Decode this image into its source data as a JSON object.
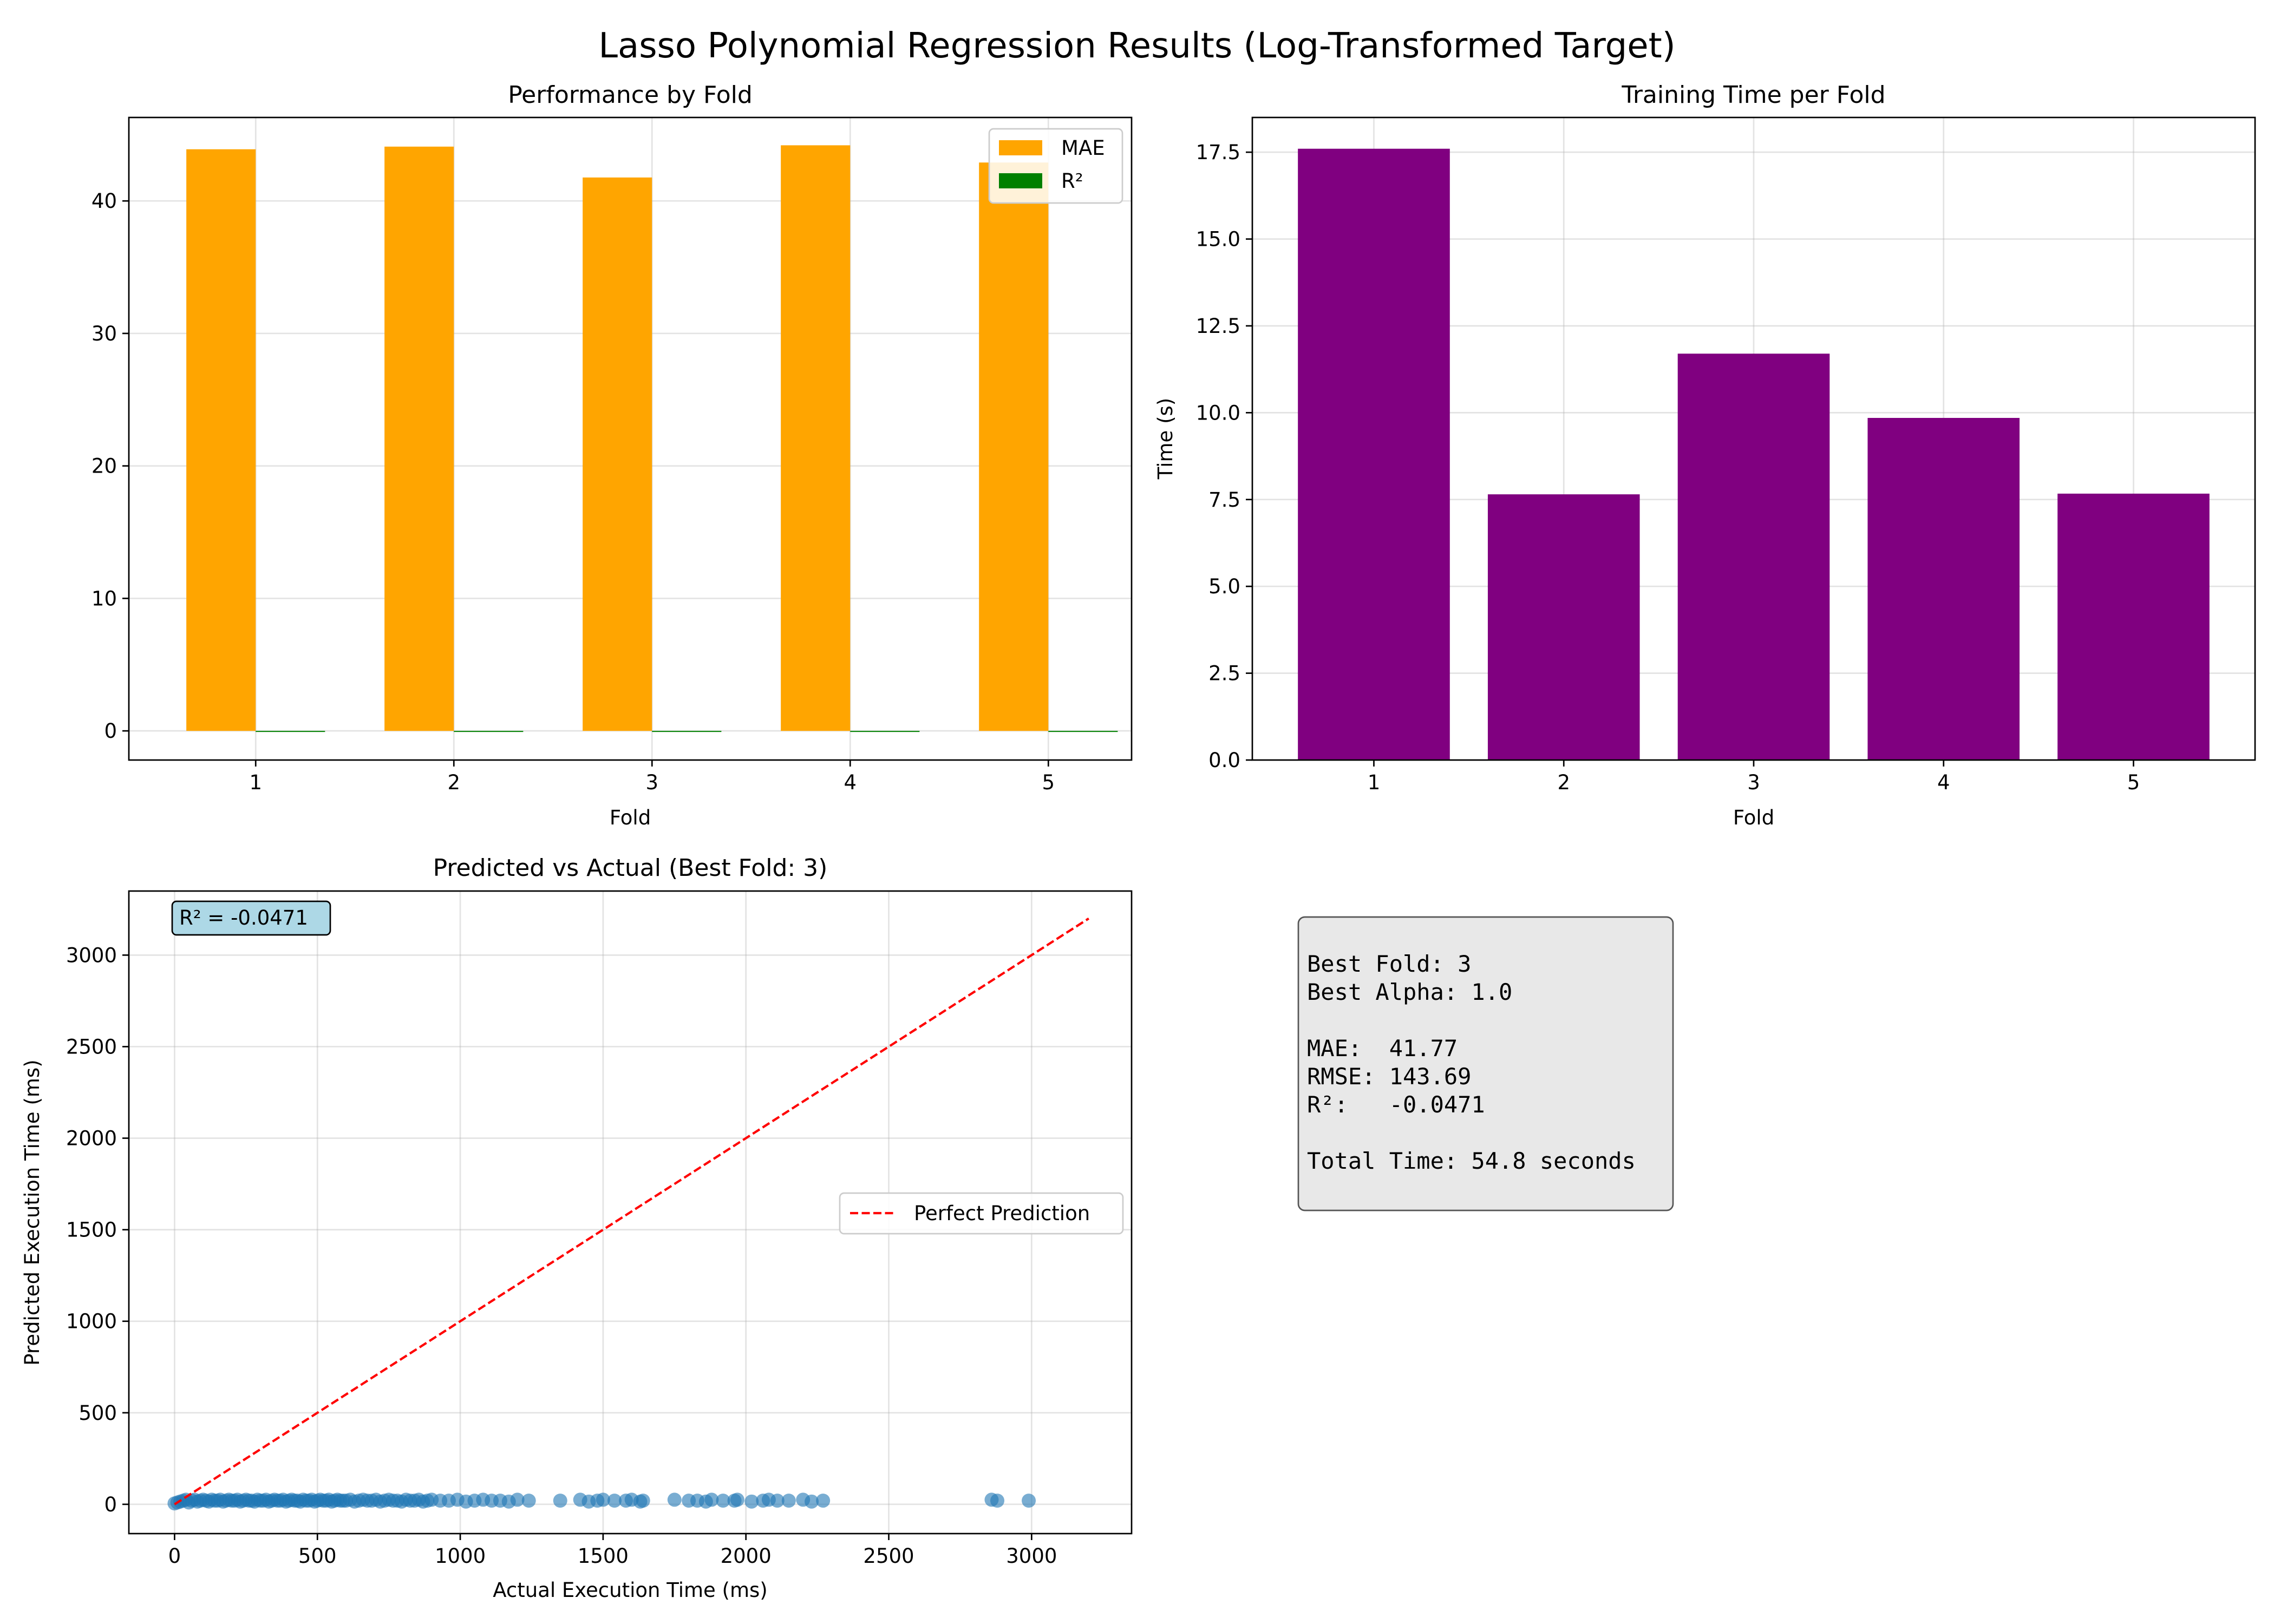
{
  "figure": {
    "suptitle": "Lasso Polynomial Regression Results (Log-Transformed Target)"
  },
  "colors": {
    "mae": "#FFA500",
    "r2": "#008000",
    "time": "#800080",
    "scatter": "#1f77b4",
    "perfect": "#FF0000",
    "annot_bg": "#ADD8E6",
    "summary_bg": "#E8E8E8"
  },
  "chart_data": [
    {
      "id": "performance",
      "type": "bar",
      "title": "Performance by Fold",
      "xlabel": "Fold",
      "ylabel": "",
      "categories": [
        "1",
        "2",
        "3",
        "4",
        "5"
      ],
      "series": [
        {
          "name": "MAE",
          "values": [
            43.9,
            44.1,
            41.77,
            44.2,
            42.9
          ]
        },
        {
          "name": "R²",
          "values": [
            -0.05,
            -0.04,
            -0.0471,
            -0.05,
            -0.04
          ]
        }
      ],
      "ylim": [
        -2.2,
        46.3
      ],
      "yticks": [
        0,
        10,
        20,
        30,
        40
      ],
      "grid": true,
      "legend": "top-right"
    },
    {
      "id": "training-time",
      "type": "bar",
      "title": "Training Time per Fold",
      "xlabel": "Fold",
      "ylabel": "Time (s)",
      "categories": [
        "1",
        "2",
        "3",
        "4",
        "5"
      ],
      "values": [
        17.6,
        7.65,
        11.7,
        9.85,
        7.67
      ],
      "ylim": [
        0,
        18.5
      ],
      "yticks": [
        "0.0",
        "2.5",
        "5.0",
        "7.5",
        "10.0",
        "12.5",
        "15.0",
        "17.5"
      ],
      "grid": true
    },
    {
      "id": "predicted-vs-actual",
      "type": "scatter",
      "title": "Predicted vs Actual (Best Fold: 3)",
      "xlabel": "Actual Execution Time (ms)",
      "ylabel": "Predicted Execution Time (ms)",
      "annotation": "R² = -0.0471",
      "xlim": [
        -160,
        3350
      ],
      "ylim": [
        -160,
        3350
      ],
      "xticks": [
        0,
        500,
        1000,
        1500,
        2000,
        2500,
        3000
      ],
      "yticks": [
        0,
        500,
        1000,
        1500,
        2000,
        2500,
        3000
      ],
      "grid": true,
      "legend": "center-right",
      "reference_line": {
        "name": "Perfect Prediction",
        "x": [
          0,
          3200
        ],
        "y": [
          0,
          3200
        ]
      },
      "points": {
        "x": [
          0,
          10,
          20,
          30,
          40,
          50,
          60,
          70,
          80,
          90,
          100,
          110,
          120,
          130,
          140,
          150,
          160,
          170,
          180,
          190,
          200,
          210,
          220,
          230,
          240,
          250,
          260,
          270,
          280,
          290,
          300,
          310,
          320,
          330,
          340,
          350,
          360,
          370,
          380,
          390,
          400,
          410,
          420,
          430,
          440,
          450,
          460,
          470,
          480,
          490,
          500,
          510,
          520,
          530,
          540,
          550,
          560,
          570,
          580,
          590,
          600,
          615,
          630,
          645,
          660,
          675,
          690,
          705,
          720,
          735,
          750,
          765,
          780,
          795,
          810,
          825,
          840,
          855,
          870,
          885,
          900,
          930,
          960,
          990,
          1020,
          1050,
          1080,
          1110,
          1140,
          1170,
          1200,
          1240,
          1350,
          1420,
          1450,
          1480,
          1500,
          1540,
          1580,
          1600,
          1630,
          1640,
          1750,
          1800,
          1830,
          1860,
          1880,
          1920,
          1960,
          1970,
          2020,
          2060,
          2080,
          2110,
          2150,
          2200,
          2230,
          2270,
          2860,
          2880,
          2990
        ],
        "y": [
          5,
          10,
          15,
          20,
          25,
          10,
          20,
          25,
          15,
          20,
          25,
          20,
          15,
          25,
          20,
          20,
          25,
          15,
          20,
          25,
          20,
          20,
          25,
          15,
          20,
          25,
          20,
          20,
          15,
          25,
          20,
          20,
          25,
          15,
          20,
          25,
          20,
          20,
          25,
          15,
          20,
          25,
          20,
          20,
          15,
          25,
          20,
          20,
          25,
          15,
          20,
          25,
          20,
          20,
          25,
          15,
          20,
          25,
          20,
          20,
          20,
          25,
          15,
          20,
          25,
          20,
          20,
          25,
          15,
          20,
          25,
          20,
          20,
          15,
          25,
          20,
          20,
          25,
          15,
          20,
          25,
          20,
          20,
          25,
          15,
          20,
          25,
          20,
          20,
          15,
          25,
          20,
          20,
          25,
          15,
          20,
          25,
          20,
          20,
          25,
          15,
          20,
          25,
          20,
          20,
          15,
          25,
          20,
          20,
          25,
          15,
          20,
          25,
          20,
          20,
          25,
          15,
          20,
          25,
          20,
          20
        ]
      }
    }
  ],
  "summary": {
    "lines": [
      "Best Fold: 3",
      "Best Alpha: 1.0",
      "",
      "MAE:  41.77",
      "RMSE: 143.69",
      "R²:   -0.0471",
      "",
      "Total Time: 54.8 seconds"
    ]
  }
}
